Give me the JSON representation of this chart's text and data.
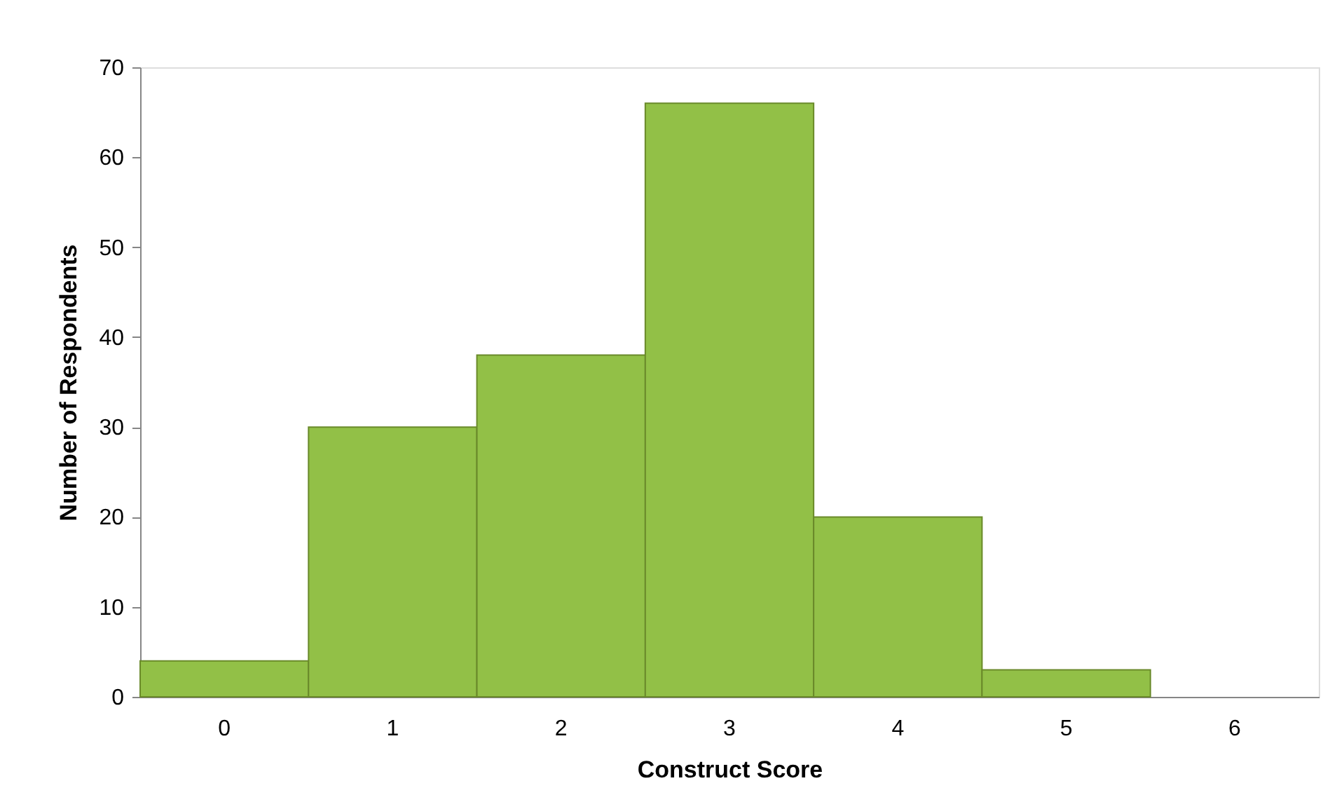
{
  "chart_data": {
    "type": "bar",
    "xlabel": "Construct Score",
    "ylabel": "Number of Respondents",
    "categories": [
      "0",
      "1",
      "2",
      "3",
      "4",
      "5",
      "6"
    ],
    "values": [
      4,
      30,
      38,
      66,
      20,
      3,
      0
    ],
    "color": "#92c047",
    "ylim": [
      0,
      70
    ],
    "yticks": [
      0,
      10,
      20,
      30,
      40,
      50,
      60,
      70
    ],
    "grid": false
  }
}
